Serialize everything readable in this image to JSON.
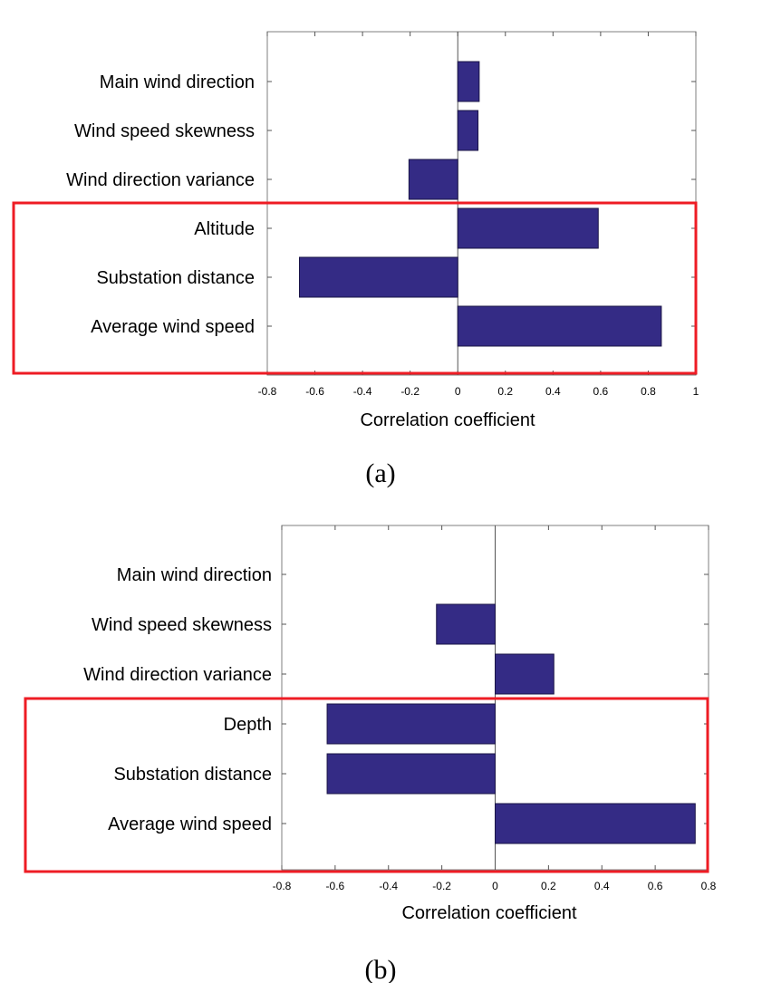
{
  "chart_data": [
    {
      "type": "bar",
      "orientation": "horizontal",
      "caption": "(a)",
      "categories": [
        "Main wind direction",
        "Wind speed skewness",
        "Wind direction variance",
        "Altitude",
        "Substation distance",
        "Average wind speed"
      ],
      "values": [
        0.09,
        0.085,
        -0.205,
        0.59,
        -0.665,
        0.855
      ],
      "xlabel": "Correlation coefficient",
      "ylabel": "",
      "xlim": [
        -0.8,
        1
      ],
      "xticks": [
        -0.8,
        -0.6,
        -0.4,
        -0.2,
        0,
        0.2,
        0.4,
        0.6,
        0.8,
        1
      ],
      "highlight_categories": [
        "Altitude",
        "Substation distance",
        "Average wind speed"
      ],
      "bar_color": "#342b85",
      "highlight_color": "#ee1c24",
      "grid": false
    },
    {
      "type": "bar",
      "orientation": "horizontal",
      "caption": "(b)",
      "categories": [
        "Main wind direction",
        "Wind speed skewness",
        "Wind direction variance",
        "Depth",
        "Substation distance",
        "Average wind speed"
      ],
      "values": [
        0,
        -0.22,
        0.22,
        -0.63,
        -0.63,
        0.75
      ],
      "xlabel": "Correlation coefficient",
      "ylabel": "",
      "xlim": [
        -0.8,
        0.8
      ],
      "xticks": [
        -0.8,
        -0.6,
        -0.4,
        -0.2,
        0,
        0.2,
        0.4,
        0.6,
        0.8
      ],
      "highlight_categories": [
        "Depth",
        "Substation distance",
        "Average wind speed"
      ],
      "bar_color": "#342b85",
      "highlight_color": "#ee1c24",
      "grid": false
    }
  ]
}
